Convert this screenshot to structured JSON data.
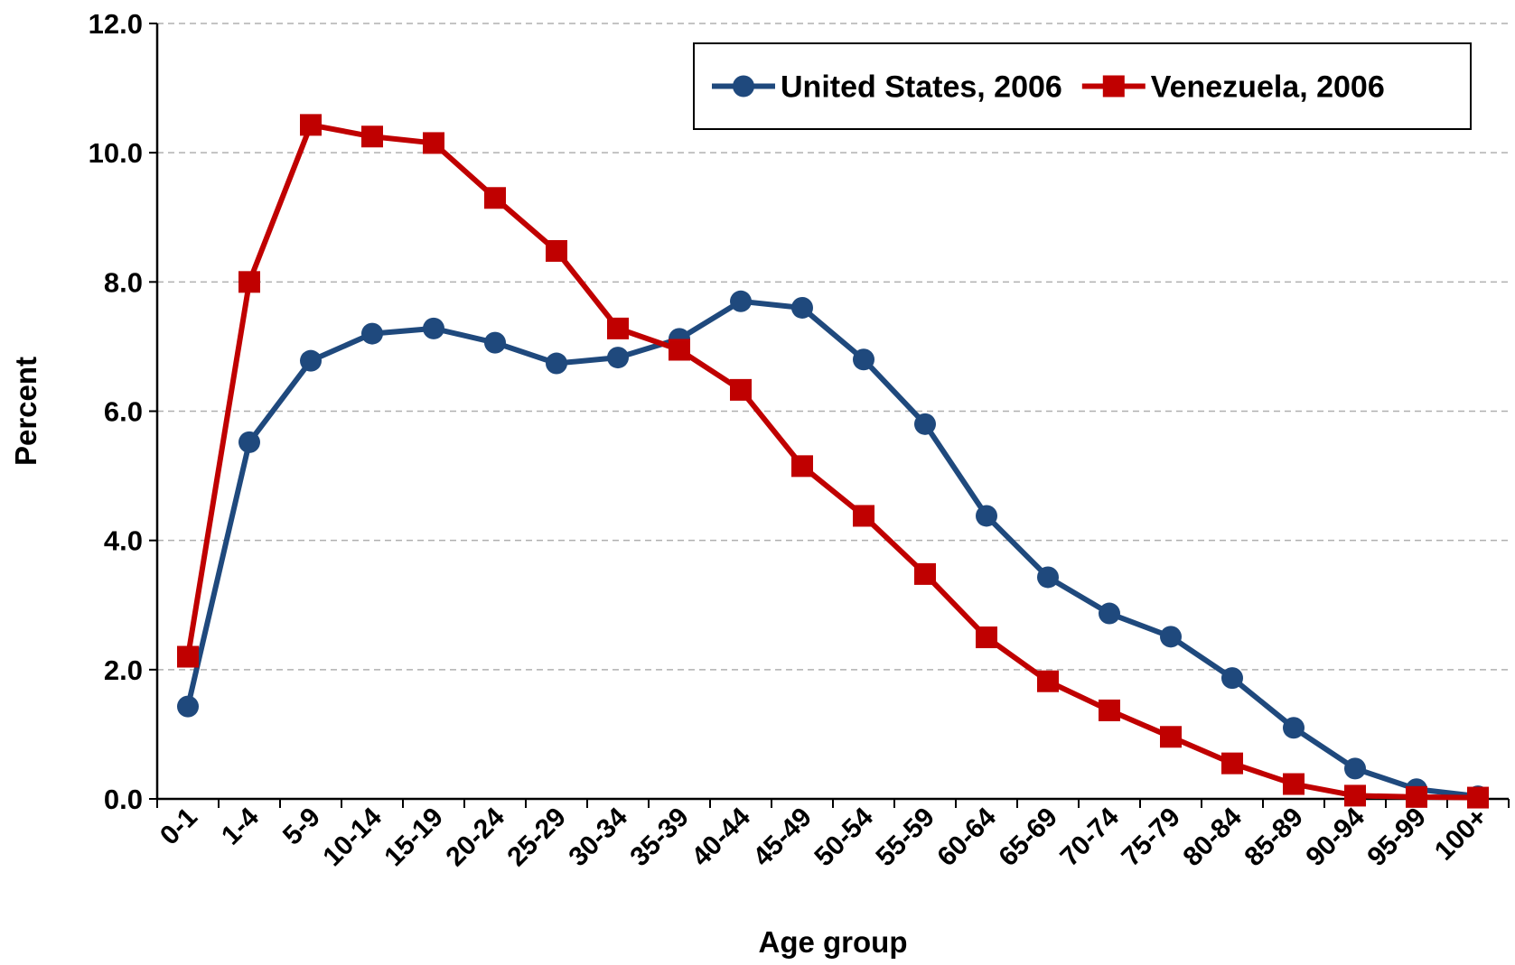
{
  "chart_data": {
    "type": "line",
    "x_label": "Age group",
    "y_label": "Percent",
    "categories": [
      "0-1",
      "1-4",
      "5-9",
      "10-14",
      "15-19",
      "20-24",
      "25-29",
      "30-34",
      "35-39",
      "40-44",
      "45-49",
      "50-54",
      "55-59",
      "60-64",
      "65-69",
      "70-74",
      "75-79",
      "80-84",
      "85-89",
      "90-94",
      "95-99",
      "100+"
    ],
    "series": [
      {
        "name": "United States, 2006",
        "color": "#1f497d",
        "marker": "circle",
        "values": [
          1.43,
          5.52,
          6.78,
          7.2,
          7.28,
          7.06,
          6.74,
          6.83,
          7.12,
          7.7,
          7.6,
          6.8,
          5.8,
          4.38,
          3.43,
          2.87,
          2.51,
          1.87,
          1.1,
          0.47,
          0.15,
          0.04
        ]
      },
      {
        "name": "Venezuela, 2006",
        "color": "#c00000",
        "marker": "square",
        "values": [
          2.2,
          8.0,
          10.43,
          10.25,
          10.15,
          9.3,
          8.48,
          7.28,
          6.95,
          6.33,
          5.15,
          4.38,
          3.48,
          2.5,
          1.82,
          1.37,
          0.96,
          0.55,
          0.23,
          0.05,
          0.03,
          0.02
        ]
      }
    ],
    "ylim": [
      0,
      12
    ],
    "yticks": [
      {
        "value": 0,
        "label": "0.0"
      },
      {
        "value": 2,
        "label": "2.0"
      },
      {
        "value": 4,
        "label": "4.0"
      },
      {
        "value": 6,
        "label": "6.0"
      },
      {
        "value": 8,
        "label": "8.0"
      },
      {
        "value": 10,
        "label": "10.0"
      },
      {
        "value": 12,
        "label": "12.0"
      }
    ],
    "grid": true,
    "legend": "top-right"
  }
}
